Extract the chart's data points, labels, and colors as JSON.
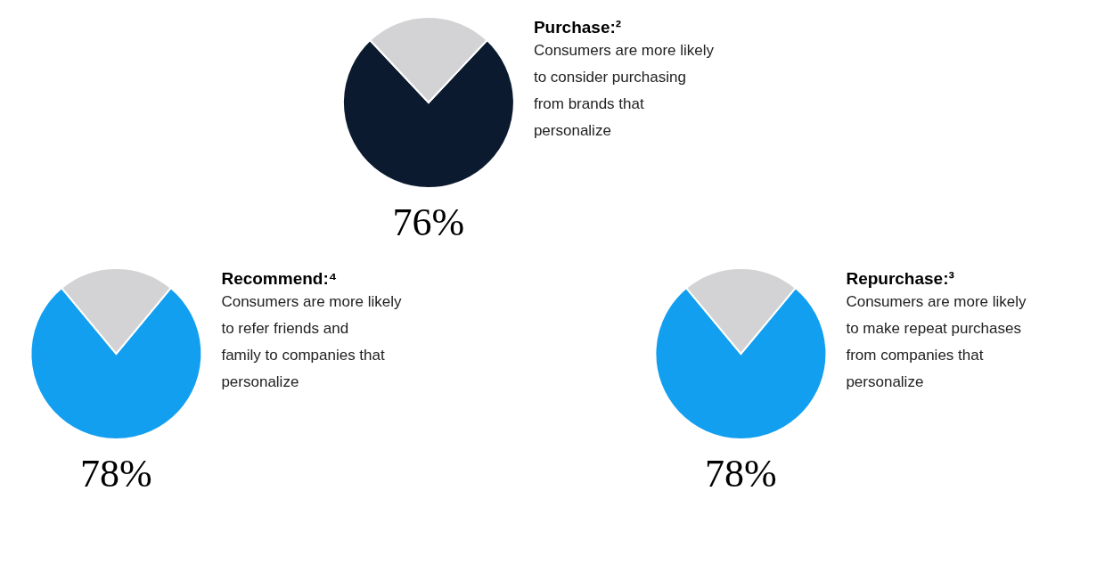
{
  "chart_data": [
    {
      "type": "pie",
      "title": "Purchase:²",
      "subtitle": "Consumers are more likely to consider purchasing from brands that personalize",
      "categories": [
        null,
        null
      ],
      "values": [
        76,
        24
      ],
      "colors": [
        "#0b1a2e",
        "#d3d3d5"
      ],
      "value_labels": [
        "76%",
        null
      ]
    },
    {
      "type": "pie",
      "title": "Recommend:⁴",
      "subtitle": "Consumers are more likely to refer friends and family to companies that personalize",
      "categories": [
        null,
        null
      ],
      "values": [
        78,
        22
      ],
      "colors": [
        "#139ff0",
        "#d3d3d5"
      ],
      "value_labels": [
        "78%",
        null
      ]
    },
    {
      "type": "pie",
      "title": "Repurchase:³",
      "subtitle": "Consumers are more likely to make repeat purchases from companies that personalize",
      "categories": [
        null,
        null
      ],
      "values": [
        78,
        22
      ],
      "colors": [
        "#139ff0",
        "#d3d3d5"
      ],
      "value_labels": [
        "78%",
        null
      ]
    }
  ]
}
